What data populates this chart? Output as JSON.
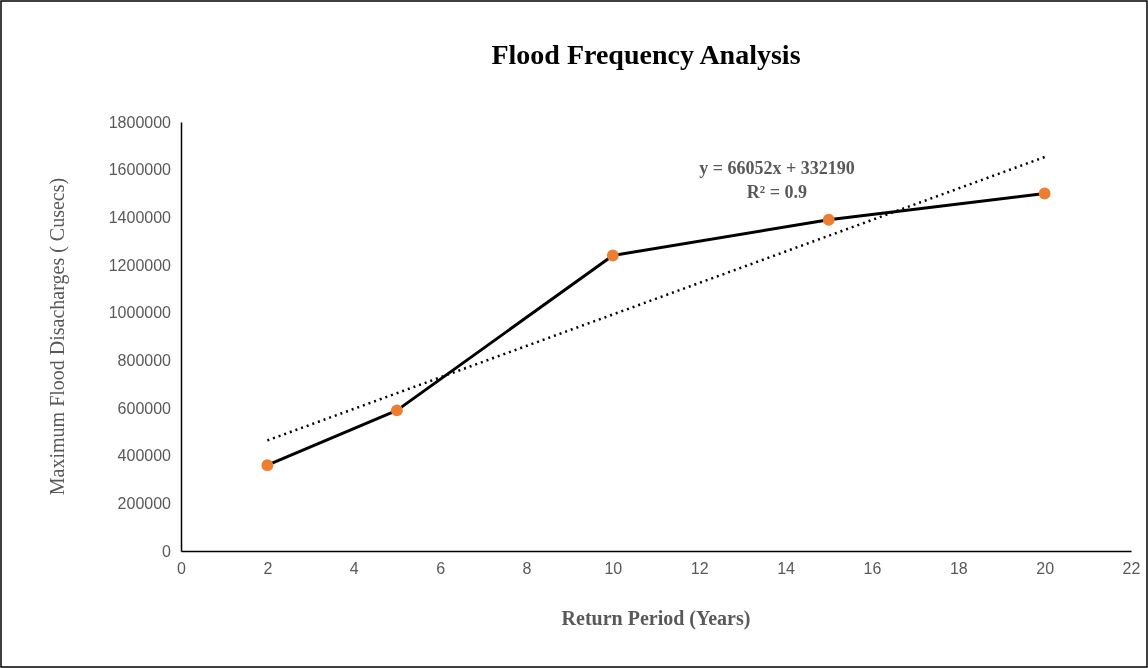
{
  "chart_data": {
    "type": "line",
    "title": "Flood Frequency Analysis",
    "xlabel": "Return Period (Years)",
    "ylabel": "Maximum Flood Disacharges ( Cusecs)",
    "x": [
      2,
      5,
      10,
      15,
      20
    ],
    "series": [
      {
        "color": "#000000",
        "colors": [
          "#ed7d31",
          "#ed7d31",
          "#ed7d31",
          "#ed7d31",
          "#ed7d31"
        ],
        "marker": "circle",
        "line_style": "solid",
        "values": [
          360000,
          590000,
          1240000,
          1390000,
          1500000
        ]
      },
      {
        "color": "#000000",
        "marker": "none",
        "line_style": "dotted",
        "x": [
          2,
          20
        ],
        "values": [
          464000,
          1653000
        ]
      }
    ],
    "xlim": [
      0,
      22
    ],
    "xticks": [
      0,
      2,
      4,
      6,
      8,
      10,
      12,
      14,
      16,
      18,
      20,
      22
    ],
    "ylim": [
      0,
      1800000
    ],
    "yticks": [
      0,
      200000,
      400000,
      600000,
      800000,
      1000000,
      1200000,
      1400000,
      1600000,
      1800000
    ],
    "grid": false,
    "annotations": [
      "y = 66052x + 332190",
      "R² = 0.9"
    ]
  }
}
